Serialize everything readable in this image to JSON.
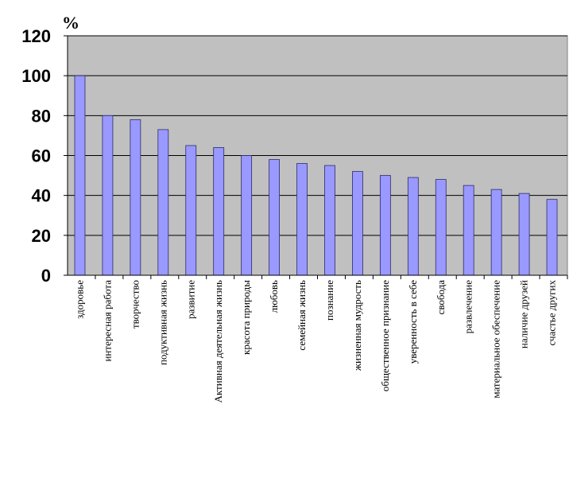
{
  "chart_data": {
    "type": "bar",
    "title": "",
    "xlabel": "",
    "ylabel": "%",
    "ylim": [
      0,
      120
    ],
    "yticks": [
      0,
      20,
      40,
      60,
      80,
      100,
      120
    ],
    "grid": true,
    "legend": "none",
    "colors": {
      "plot_background": "#c0c0c0",
      "bar_fill": "#9999ff",
      "bar_stroke": "#2b2b6b",
      "gridline": "#000000"
    },
    "categories": [
      "здоровье",
      "интересная работа",
      "творчество",
      "подуктивная жизнь",
      "развитие",
      "Активная деятельная жизнь",
      "красота природы",
      "любовь",
      "семейная жизнь",
      "познание",
      "жизненная мудрость",
      "общественное признание",
      "уверенность в себе",
      "свобода",
      "развлечение",
      "материальное обеспечение",
      "наличие друзей",
      "счастье других"
    ],
    "values": [
      100,
      80,
      78,
      73,
      65,
      64,
      60,
      58,
      56,
      55,
      52,
      50,
      49,
      48,
      45,
      43,
      41,
      38
    ]
  }
}
